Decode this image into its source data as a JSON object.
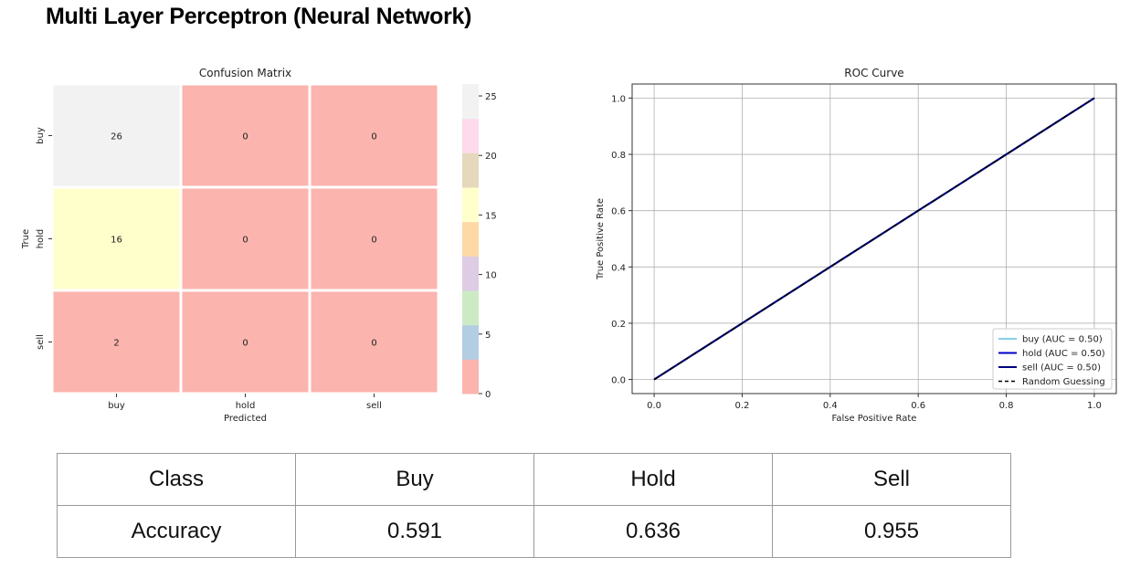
{
  "page": {
    "title": "Multi Layer Perceptron (Neural Network)"
  },
  "chart_data": [
    {
      "type": "heatmap",
      "title": "Confusion Matrix",
      "xlabel": "Predicted",
      "ylabel": "True",
      "x_categories": [
        "buy",
        "hold",
        "sell"
      ],
      "y_categories": [
        "buy",
        "hold",
        "sell"
      ],
      "matrix": [
        [
          26,
          0,
          0
        ],
        [
          16,
          0,
          0
        ],
        [
          2,
          0,
          0
        ]
      ],
      "colorbar": {
        "range": [
          0,
          26
        ],
        "ticks": [
          0,
          5,
          10,
          15,
          20,
          25
        ],
        "colors": [
          "#fbb4ae",
          "#b3cde3",
          "#ccebc5",
          "#decbe4",
          "#fed9a6",
          "#ffffcc",
          "#e5d8bd",
          "#fddaec",
          "#f2f2f2"
        ]
      },
      "grid": false
    },
    {
      "type": "line",
      "title": "ROC Curve",
      "xlabel": "False Positive Rate",
      "ylabel": "True Positive Rate",
      "xlim": [
        -0.05,
        1.05
      ],
      "ylim": [
        -0.05,
        1.05
      ],
      "xticks": [
        "0.0",
        "0.2",
        "0.4",
        "0.6",
        "0.8",
        "1.0"
      ],
      "yticks": [
        "0.0",
        "0.2",
        "0.4",
        "0.6",
        "0.8",
        "1.0"
      ],
      "grid": true,
      "legend_position": "lower-right",
      "series": [
        {
          "name": "buy (AUC = 0.50)",
          "x": [
            0,
            1
          ],
          "y": [
            0,
            1
          ],
          "color": "#87ceeb",
          "dash": false
        },
        {
          "name": "hold (AUC = 0.50)",
          "x": [
            0,
            1
          ],
          "y": [
            0,
            1
          ],
          "color": "#0000cd",
          "dash": false
        },
        {
          "name": "sell (AUC = 0.50)",
          "x": [
            0,
            1
          ],
          "y": [
            0,
            1
          ],
          "color": "#000080",
          "dash": false
        },
        {
          "name": "Random Guessing",
          "x": [
            0,
            1
          ],
          "y": [
            0,
            1
          ],
          "color": "#000000",
          "dash": true
        }
      ]
    }
  ],
  "metrics_table": {
    "header": [
      "Class",
      "Buy",
      "Hold",
      "Sell"
    ],
    "rows": [
      [
        "Accuracy",
        "0.591",
        "0.636",
        "0.955"
      ]
    ]
  }
}
